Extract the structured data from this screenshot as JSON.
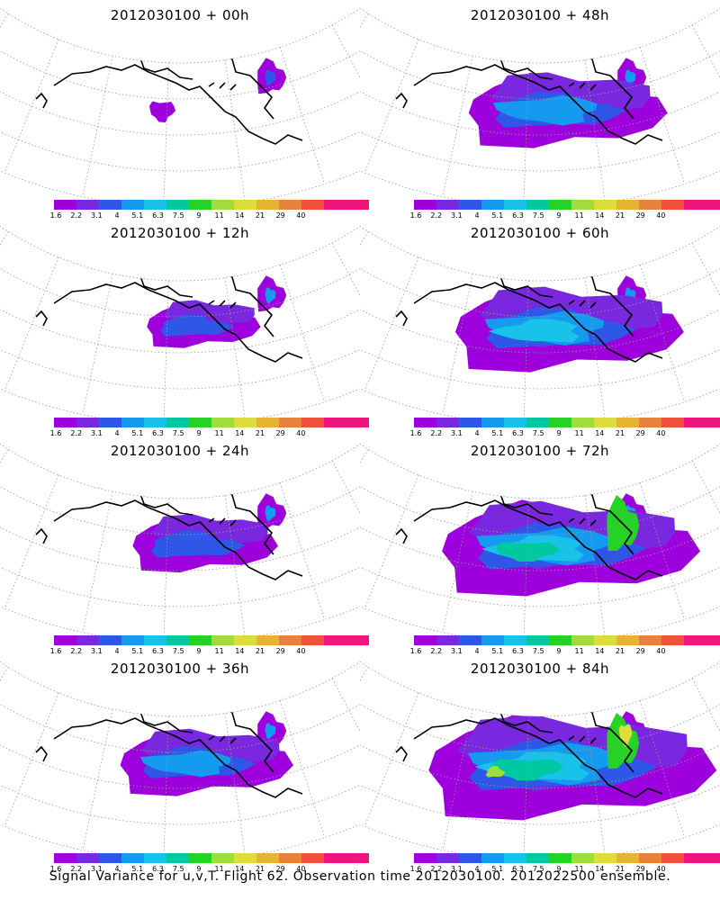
{
  "figure": {
    "footer": "Signal Variance for u,v,T. Flight 62. Observation time 2012030100. 2012022500 ensemble."
  },
  "panels": [
    {
      "title": "2012030100 + 00h",
      "spread_level": 0.0
    },
    {
      "title": "2012030100 + 48h",
      "spread_level": 0.55
    },
    {
      "title": "2012030100 + 12h",
      "spread_level": 0.12
    },
    {
      "title": "2012030100 + 60h",
      "spread_level": 0.7
    },
    {
      "title": "2012030100 + 24h",
      "spread_level": 0.28
    },
    {
      "title": "2012030100 + 72h",
      "spread_level": 0.85
    },
    {
      "title": "2012030100 + 36h",
      "spread_level": 0.42
    },
    {
      "title": "2012030100 + 84h",
      "spread_level": 1.0
    }
  ],
  "colorbar": {
    "labels": [
      "1.6",
      "2.2",
      "3.1",
      "4",
      "5.1",
      "6.3",
      "7.5",
      "9",
      "11",
      "14",
      "21",
      "29",
      "40"
    ],
    "colors": [
      "#9d00dc",
      "#7a28e0",
      "#2e57e8",
      "#149bf0",
      "#19c2e8",
      "#00c8a0",
      "#27d227",
      "#a0dc3c",
      "#dcdc3c",
      "#e6b432",
      "#e6823c",
      "#f0503c",
      "#f0147f"
    ]
  }
}
